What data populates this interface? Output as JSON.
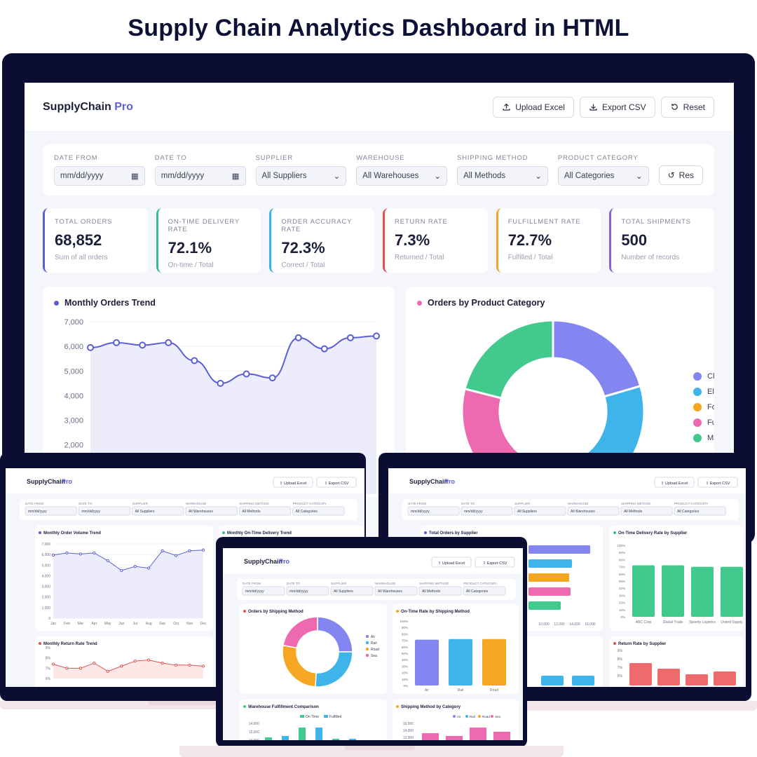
{
  "hero_title": "Supply Chain Analytics Dashboard in HTML",
  "app": {
    "brand_main": "SupplyChain",
    "brand_accent": "Pro"
  },
  "toolbar": {
    "upload": "Upload Excel",
    "export": "Export CSV",
    "reset": "Reset"
  },
  "filters": {
    "date_from_label": "DATE FROM",
    "date_to_label": "DATE TO",
    "supplier_label": "SUPPLIER",
    "warehouse_label": "WAREHOUSE",
    "shipping_label": "SHIPPING METHOD",
    "category_label": "PRODUCT CATEGORY",
    "date_placeholder": "mm/dd/yyyy",
    "supplier_value": "All Suppliers",
    "warehouse_value": "All Warehouses",
    "shipping_value": "All Methods",
    "category_value": "All Categories",
    "reset": "Res"
  },
  "kpis": [
    {
      "label": "TOTAL ORDERS",
      "value": "68,852",
      "sub": "Sum of all orders",
      "color": "#5b5fd6"
    },
    {
      "label": "ON-TIME DELIVERY RATE",
      "value": "72.1%",
      "sub": "On-time / Total",
      "color": "#2fbf8f"
    },
    {
      "label": "ORDER ACCURACY RATE",
      "value": "72.3%",
      "sub": "Correct / Total",
      "color": "#38b6e0"
    },
    {
      "label": "RETURN RATE",
      "value": "7.3%",
      "sub": "Returned / Total",
      "color": "#e05252"
    },
    {
      "label": "FULFILLMENT RATE",
      "value": "72.7%",
      "sub": "Fulfilled / Total",
      "color": "#f2a531"
    },
    {
      "label": "TOTAL SHIPMENTS",
      "value": "500",
      "sub": "Number of records",
      "color": "#8a63d2"
    }
  ],
  "line_card_title": "Monthly Orders Trend",
  "donut_card_title": "Orders by Product Category",
  "chart_data": [
    {
      "type": "line",
      "title": "Monthly Orders Trend",
      "x": [
        "Jan",
        "Feb",
        "Mar",
        "Apr",
        "May",
        "Jun",
        "Jul",
        "Aug",
        "Sep",
        "Oct",
        "Nov",
        "Dec"
      ],
      "values": [
        5950,
        6150,
        6050,
        6150,
        5420,
        4500,
        4880,
        4720,
        6350,
        5900,
        6350,
        6420
      ],
      "ylim": [
        0,
        7000
      ],
      "yticks": [
        "7,000",
        "6,000",
        "5,000",
        "4,000",
        "3,000",
        "2,000",
        "1,000"
      ],
      "color": "#5b5fd6",
      "fill": "#ececfb"
    },
    {
      "type": "pie",
      "title": "Orders by Product Category",
      "categories": [
        "Clothing",
        "Electronics",
        "Food",
        "Furniture",
        "Machinery"
      ],
      "legend_labels": [
        "Clothin",
        "Electron",
        "Food",
        "Furnitu",
        "Machin"
      ],
      "values": [
        20.5,
        20.5,
        18,
        20,
        21
      ],
      "colors": [
        "#8385f0",
        "#3fb4ea",
        "#f5a623",
        "#ee6ab0",
        "#42c98e"
      ]
    }
  ],
  "small_screens": {
    "left_title1": "Monthly Order Volume Trend",
    "left_title2": "Monthly On-Time Delivery Trend",
    "left_title3": "Monthly Return Rate Trend",
    "right_title1": "Total Orders by Supplier",
    "right_title2": "On-Time Delivery Rate by Supplier",
    "right_title3": "Return Rate by Supplier",
    "right_suppliers": [
      "ABC Corp",
      "Global Trade",
      "Speedy Logistics",
      "United Supply"
    ],
    "center_title1": "Orders by Shipping Method",
    "center_title2": "On-Time Rate by Shipping Method",
    "center_title3": "Warehouse Fulfillment Comparison",
    "center_title4": "Shipping Method by Category",
    "center_methods": [
      "Air",
      "Rail",
      "Road"
    ],
    "center_legend": [
      "Air",
      "Rail",
      "Road",
      "Sea"
    ],
    "center_legend2": [
      "On Time",
      "Fulfilled"
    ],
    "months": [
      "Jan",
      "Feb",
      "Mar",
      "Apr",
      "May",
      "Jun",
      "Jul",
      "Aug",
      "Sep",
      "Oct",
      "Nov",
      "Dec"
    ]
  }
}
